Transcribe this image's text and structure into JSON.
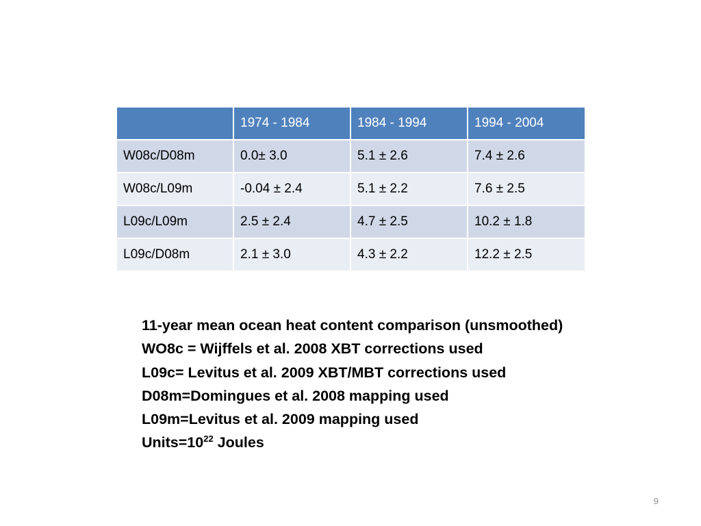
{
  "table": {
    "headers": [
      "",
      "1974 - 1984",
      "1984 - 1994",
      "1994 - 2004"
    ],
    "rows": [
      [
        "W08c/D08m",
        "0.0± 3.0",
        "5.1 ± 2.6",
        "7.4 ± 2.6"
      ],
      [
        "W08c/L09m",
        "-0.04 ± 2.4",
        "5.1 ± 2.2",
        "7.6 ± 2.5"
      ],
      [
        "L09c/L09m",
        "2.5 ± 2.4",
        "4.7 ± 2.5",
        "10.2 ± 1.8"
      ],
      [
        "L09c/D08m",
        "2.1 ± 3.0",
        "4.3 ± 2.2",
        "12.2 ± 2.5"
      ]
    ]
  },
  "caption": {
    "lines": [
      "11-year mean ocean heat content comparison (unsmoothed)",
      "WO8c = Wijffels et al. 2008 XBT corrections used",
      "L09c= Levitus et al. 2009 XBT/MBT corrections used",
      "D08m=Domingues et al. 2008 mapping used",
      "L09m=Levitus et al. 2009 mapping used"
    ],
    "units_prefix": "Units=10",
    "units_exponent": "22",
    "units_suffix": " Joules"
  },
  "page_number": "9",
  "colors": {
    "header_bg": "#4f81bd",
    "row_odd_bg": "#d0d8e8",
    "row_even_bg": "#e9edf4"
  }
}
